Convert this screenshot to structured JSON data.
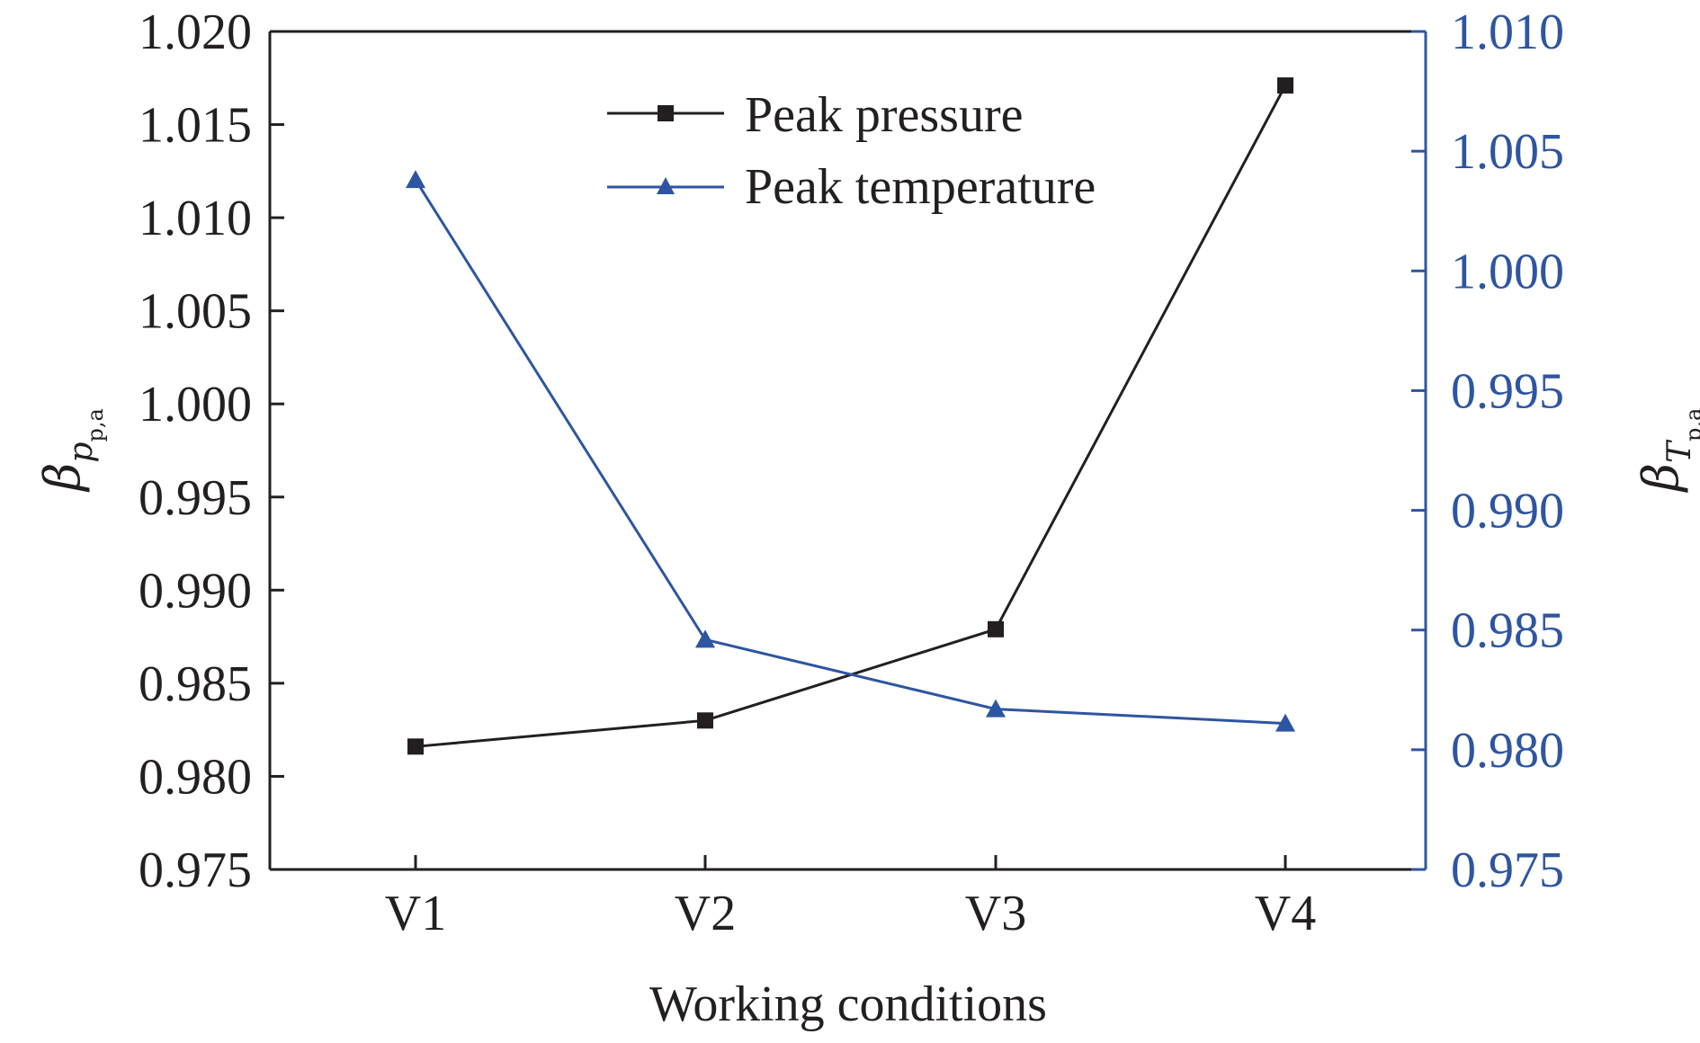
{
  "chart_data": {
    "type": "line",
    "xlabel": "Working conditions",
    "categories": [
      "V1",
      "V2",
      "V3",
      "V4"
    ],
    "y_left": {
      "label_base": "β",
      "label_sub": "p",
      "label_subsub": "p,a",
      "ylim": [
        0.975,
        1.02
      ],
      "ticks": [
        "0.975",
        "0.980",
        "0.985",
        "0.990",
        "0.995",
        "1.000",
        "1.005",
        "1.010",
        "1.015",
        "1.020"
      ],
      "color": "#231f20"
    },
    "y_right": {
      "label_base": "β",
      "label_sub": "T",
      "label_subsub": "p,a",
      "ylim": [
        0.975,
        1.01
      ],
      "ticks": [
        "0.975",
        "0.980",
        "0.985",
        "0.990",
        "0.995",
        "1.000",
        "1.005",
        "1.010"
      ],
      "color": "#2e55a1"
    },
    "series": [
      {
        "name": "Peak pressure",
        "axis": "left",
        "marker": "square",
        "color": "#231f20",
        "values": [
          0.9816,
          0.983,
          0.9879,
          1.0171
        ]
      },
      {
        "name": "Peak temperature",
        "axis": "right",
        "marker": "triangle",
        "color": "#2e55a1",
        "values": [
          1.0038,
          0.9846,
          0.9817,
          0.9811
        ]
      }
    ],
    "legend_position": "top-center"
  }
}
